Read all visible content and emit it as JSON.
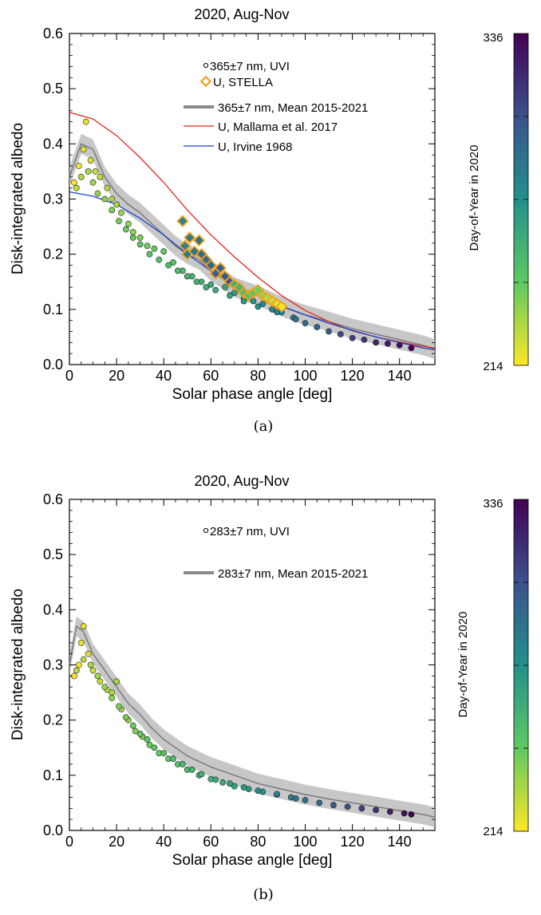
{
  "chart_data": [
    {
      "type": "scatter",
      "panel_label": "(a)",
      "title": "2020, Aug-Nov",
      "xlabel": "Solar phase angle [deg]",
      "ylabel": "Disk-integrated albedo",
      "xlim": [
        0,
        155
      ],
      "ylim": [
        0.0,
        0.6
      ],
      "x_ticks": [
        0,
        20,
        40,
        60,
        80,
        100,
        120,
        140
      ],
      "y_ticks": [
        0.0,
        0.1,
        0.2,
        0.3,
        0.4,
        0.5,
        0.6
      ],
      "grid": false,
      "legend_position": "top-right",
      "colorbar": {
        "label": "Day-of-Year in 2020",
        "min": 214,
        "max": 336,
        "colormap": "viridis_r"
      },
      "legend": [
        {
          "key": "uvi",
          "label": "365±7 nm, UVI",
          "marker": "small-circle"
        },
        {
          "key": "stella",
          "label": "U, STELLA",
          "marker": "orange-diamond"
        },
        {
          "key": "mean",
          "label": "365±7 nm, Mean 2015-2021",
          "marker": "gray-line"
        },
        {
          "key": "mallama",
          "label": "U, Mallama et al. 2017",
          "marker": "red-line"
        },
        {
          "key": "irvine",
          "label": "U, Irvine 1968",
          "marker": "blue-line"
        }
      ],
      "series": [
        {
          "name": "365±7 nm, UVI",
          "kind": "points",
          "points": [
            [
              2,
              0.33,
              214
            ],
            [
              4,
              0.36,
              216
            ],
            [
              6,
              0.39,
              218
            ],
            [
              7,
              0.44,
              219
            ],
            [
              9,
              0.37,
              221
            ],
            [
              11,
              0.35,
              223
            ],
            [
              13,
              0.34,
              225
            ],
            [
              16,
              0.32,
              227
            ],
            [
              18,
              0.3,
              229
            ],
            [
              20,
              0.29,
              231
            ],
            [
              22,
              0.275,
              233
            ],
            [
              25,
              0.255,
              235
            ],
            [
              27,
              0.24,
              237
            ],
            [
              30,
              0.23,
              239
            ],
            [
              33,
              0.215,
              241
            ],
            [
              36,
              0.21,
              244
            ],
            [
              40,
              0.205,
              246
            ],
            [
              44,
              0.185,
              249
            ],
            [
              48,
              0.17,
              252
            ],
            [
              52,
              0.16,
              255
            ],
            [
              56,
              0.15,
              258
            ],
            [
              60,
              0.145,
              261
            ],
            [
              63,
              0.165,
              263
            ],
            [
              66,
              0.14,
              265
            ],
            [
              70,
              0.13,
              268
            ],
            [
              74,
              0.12,
              271
            ],
            [
              78,
              0.115,
              274
            ],
            [
              82,
              0.11,
              277
            ],
            [
              86,
              0.1,
              280
            ],
            [
              90,
              0.095,
              284
            ],
            [
              95,
              0.085,
              288
            ],
            [
              100,
              0.075,
              292
            ],
            [
              105,
              0.068,
              297
            ],
            [
              110,
              0.06,
              302
            ],
            [
              115,
              0.055,
              307
            ],
            [
              120,
              0.048,
              312
            ],
            [
              125,
              0.045,
              317
            ],
            [
              130,
              0.04,
              322
            ],
            [
              135,
              0.038,
              327
            ],
            [
              140,
              0.035,
              331
            ],
            [
              145,
              0.03,
              336
            ],
            [
              3,
              0.32,
              226
            ],
            [
              5,
              0.34,
              228
            ],
            [
              8,
              0.35,
              230
            ],
            [
              10,
              0.33,
              232
            ],
            [
              12,
              0.31,
              234
            ],
            [
              15,
              0.3,
              236
            ],
            [
              18,
              0.28,
              238
            ],
            [
              21,
              0.26,
              240
            ],
            [
              24,
              0.245,
              242
            ],
            [
              27,
              0.23,
              244
            ],
            [
              30,
              0.218,
              246
            ],
            [
              34,
              0.2,
              248
            ],
            [
              38,
              0.19,
              250
            ],
            [
              42,
              0.18,
              252
            ],
            [
              46,
              0.17,
              254
            ],
            [
              50,
              0.16,
              256
            ],
            [
              54,
              0.15,
              258
            ],
            [
              58,
              0.14,
              260
            ],
            [
              62,
              0.135,
              262
            ],
            [
              68,
              0.125,
              266
            ],
            [
              74,
              0.115,
              270
            ],
            [
              80,
              0.105,
              276
            ],
            [
              88,
              0.095,
              282
            ],
            [
              96,
              0.082,
              290
            ]
          ]
        },
        {
          "name": "U, STELLA",
          "kind": "diamonds",
          "points": [
            [
              48,
              0.26,
              280
            ],
            [
              49,
              0.215,
              282
            ],
            [
              50,
              0.2,
              284
            ],
            [
              51,
              0.23,
              286
            ],
            [
              53,
              0.205,
              288
            ],
            [
              55,
              0.225,
              290
            ],
            [
              56,
              0.2,
              292
            ],
            [
              58,
              0.19,
              294
            ],
            [
              60,
              0.18,
              296
            ],
            [
              62,
              0.165,
              298
            ],
            [
              64,
              0.175,
              300
            ],
            [
              66,
              0.16,
              302
            ],
            [
              68,
              0.15,
              304
            ],
            [
              70,
              0.145,
              258
            ],
            [
              72,
              0.14,
              256
            ],
            [
              74,
              0.13,
              252
            ],
            [
              76,
              0.125,
              250
            ],
            [
              78,
              0.13,
              246
            ],
            [
              80,
              0.135,
              240
            ],
            [
              82,
              0.125,
              234
            ],
            [
              84,
              0.12,
              228
            ],
            [
              86,
              0.115,
              224
            ],
            [
              88,
              0.11,
              220
            ],
            [
              90,
              0.105,
              216
            ]
          ]
        },
        {
          "name": "365±7 nm, Mean 2015-2021",
          "kind": "band",
          "x": [
            0,
            5,
            10,
            15,
            20,
            25,
            30,
            35,
            40,
            45,
            50,
            55,
            60,
            65,
            70,
            80,
            90,
            100,
            110,
            120,
            130,
            140,
            150,
            155
          ],
          "y": [
            0.34,
            0.4,
            0.39,
            0.34,
            0.31,
            0.29,
            0.275,
            0.255,
            0.235,
            0.215,
            0.2,
            0.19,
            0.17,
            0.155,
            0.14,
            0.125,
            0.105,
            0.09,
            0.078,
            0.065,
            0.055,
            0.045,
            0.035,
            0.028
          ]
        },
        {
          "name": "U, Mallama et al. 2017",
          "kind": "line",
          "color": "#e8221b",
          "x": [
            0,
            10,
            20,
            30,
            40,
            50,
            60,
            70,
            80,
            90,
            100,
            110,
            120,
            130,
            140,
            150,
            155
          ],
          "y": [
            0.457,
            0.445,
            0.415,
            0.375,
            0.33,
            0.28,
            0.235,
            0.195,
            0.158,
            0.125,
            0.098,
            0.078,
            0.061,
            0.05,
            0.041,
            0.033,
            0.03
          ]
        },
        {
          "name": "U, Irvine 1968",
          "kind": "line",
          "color": "#1f3fd0",
          "x": [
            0,
            10,
            20,
            30,
            40,
            50,
            60,
            70,
            80,
            90,
            100,
            110,
            120,
            130,
            140,
            150,
            155
          ],
          "y": [
            0.313,
            0.305,
            0.29,
            0.265,
            0.235,
            0.2,
            0.17,
            0.145,
            0.125,
            0.106,
            0.09,
            0.075,
            0.062,
            0.05,
            0.04,
            0.03,
            0.027
          ]
        }
      ]
    },
    {
      "type": "scatter",
      "panel_label": "(b)",
      "title": "2020, Aug-Nov",
      "xlabel": "Solar phase angle [deg]",
      "ylabel": "Disk-integrated albedo",
      "xlim": [
        0,
        155
      ],
      "ylim": [
        0.0,
        0.6
      ],
      "x_ticks": [
        0,
        20,
        40,
        60,
        80,
        100,
        120,
        140
      ],
      "y_ticks": [
        0.0,
        0.1,
        0.2,
        0.3,
        0.4,
        0.5,
        0.6
      ],
      "grid": false,
      "legend_position": "top-right",
      "colorbar": {
        "label": "Day-of-Year in 2020",
        "min": 214,
        "max": 336,
        "colormap": "viridis_r"
      },
      "legend": [
        {
          "key": "uvi",
          "label": "283±7 nm, UVI",
          "marker": "small-circle"
        },
        {
          "key": "mean",
          "label": "283±7 nm, Mean 2015-2021",
          "marker": "gray-line"
        }
      ],
      "series": [
        {
          "name": "283±7 nm, UVI",
          "kind": "points",
          "points": [
            [
              2,
              0.28,
              214
            ],
            [
              4,
              0.3,
              216
            ],
            [
              5,
              0.34,
              218
            ],
            [
              6,
              0.37,
              219
            ],
            [
              8,
              0.32,
              221
            ],
            [
              10,
              0.29,
              223
            ],
            [
              13,
              0.27,
              225
            ],
            [
              16,
              0.255,
              227
            ],
            [
              18,
              0.25,
              229
            ],
            [
              20,
              0.27,
              231
            ],
            [
              22,
              0.22,
              233
            ],
            [
              25,
              0.2,
              235
            ],
            [
              28,
              0.18,
              237
            ],
            [
              31,
              0.17,
              239
            ],
            [
              34,
              0.155,
              241
            ],
            [
              38,
              0.14,
              244
            ],
            [
              42,
              0.13,
              246
            ],
            [
              46,
              0.12,
              249
            ],
            [
              50,
              0.11,
              252
            ],
            [
              55,
              0.1,
              255
            ],
            [
              60,
              0.093,
              258
            ],
            [
              65,
              0.087,
              262
            ],
            [
              70,
              0.08,
              266
            ],
            [
              76,
              0.075,
              270
            ],
            [
              82,
              0.07,
              274
            ],
            [
              88,
              0.065,
              279
            ],
            [
              94,
              0.06,
              284
            ],
            [
              100,
              0.055,
              289
            ],
            [
              106,
              0.05,
              295
            ],
            [
              112,
              0.046,
              301
            ],
            [
              118,
              0.043,
              307
            ],
            [
              124,
              0.04,
              313
            ],
            [
              130,
              0.037,
              319
            ],
            [
              136,
              0.034,
              325
            ],
            [
              142,
              0.031,
              331
            ],
            [
              145,
              0.029,
              336
            ],
            [
              3,
              0.29,
              226
            ],
            [
              6,
              0.31,
              228
            ],
            [
              9,
              0.3,
              230
            ],
            [
              12,
              0.28,
              232
            ],
            [
              15,
              0.26,
              234
            ],
            [
              18,
              0.24,
              236
            ],
            [
              21,
              0.225,
              238
            ],
            [
              24,
              0.205,
              240
            ],
            [
              27,
              0.19,
              242
            ],
            [
              30,
              0.175,
              244
            ],
            [
              33,
              0.165,
              246
            ],
            [
              36,
              0.15,
              248
            ],
            [
              40,
              0.14,
              250
            ],
            [
              44,
              0.13,
              252
            ],
            [
              48,
              0.12,
              254
            ],
            [
              52,
              0.11,
              256
            ],
            [
              56,
              0.102,
              258
            ],
            [
              62,
              0.092,
              262
            ],
            [
              68,
              0.085,
              266
            ],
            [
              74,
              0.078,
              270
            ],
            [
              80,
              0.072,
              276
            ],
            [
              88,
              0.066,
              282
            ],
            [
              96,
              0.058,
              290
            ]
          ]
        },
        {
          "name": "283±7 nm, Mean 2015-2021",
          "kind": "band",
          "x": [
            0,
            3,
            6,
            10,
            15,
            20,
            25,
            30,
            35,
            40,
            45,
            50,
            55,
            60,
            70,
            80,
            90,
            100,
            110,
            120,
            130,
            140,
            150,
            155
          ],
          "y": [
            0.3,
            0.37,
            0.36,
            0.32,
            0.29,
            0.26,
            0.23,
            0.21,
            0.185,
            0.165,
            0.15,
            0.135,
            0.125,
            0.115,
            0.1,
            0.085,
            0.075,
            0.065,
            0.057,
            0.05,
            0.043,
            0.036,
            0.029,
            0.024
          ]
        }
      ]
    }
  ]
}
